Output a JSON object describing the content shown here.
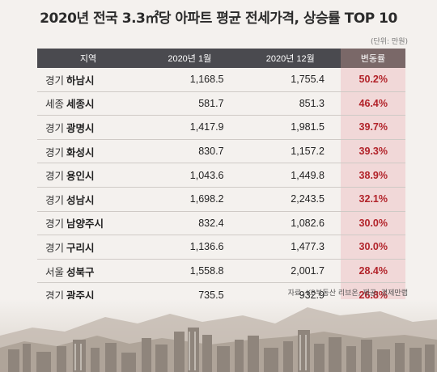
{
  "title": "2020년 전국 3.3㎡당 아파트 평균 전세가격, 상승률 TOP 10",
  "unit_note": "(단위: 만원)",
  "headers": {
    "region": "지역",
    "jan": "2020년 1월",
    "dec": "2020년 12월",
    "change": "변동률"
  },
  "rows": [
    {
      "prefix": "경기",
      "city": "하남시",
      "jan": "1,168.5",
      "dec": "1,755.4",
      "change": "50.2%"
    },
    {
      "prefix": "세종",
      "city": "세종시",
      "jan": "581.7",
      "dec": "851.3",
      "change": "46.4%"
    },
    {
      "prefix": "경기",
      "city": "광명시",
      "jan": "1,417.9",
      "dec": "1,981.5",
      "change": "39.7%"
    },
    {
      "prefix": "경기",
      "city": "화성시",
      "jan": "830.7",
      "dec": "1,157.2",
      "change": "39.3%"
    },
    {
      "prefix": "경기",
      "city": "용인시",
      "jan": "1,043.6",
      "dec": "1,449.8",
      "change": "38.9%"
    },
    {
      "prefix": "경기",
      "city": "성남시",
      "jan": "1,698.2",
      "dec": "2,243.5",
      "change": "32.1%"
    },
    {
      "prefix": "경기",
      "city": "남양주시",
      "jan": "832.4",
      "dec": "1,082.6",
      "change": "30.0%"
    },
    {
      "prefix": "경기",
      "city": "구리시",
      "jan": "1,136.6",
      "dec": "1,477.3",
      "change": "30.0%"
    },
    {
      "prefix": "서울",
      "city": "성북구",
      "jan": "1,558.8",
      "dec": "2,001.7",
      "change": "28.4%"
    },
    {
      "prefix": "경기",
      "city": "광주시",
      "jan": "735.5",
      "dec": "932.9",
      "change": "26.8%"
    }
  ],
  "source": "자료: KB부동산 리브온, 제공: 경제만랩",
  "colors": {
    "header_bg": "#4a4a4f",
    "change_text": "#b2232a",
    "change_bg": "#f1d8d8"
  }
}
